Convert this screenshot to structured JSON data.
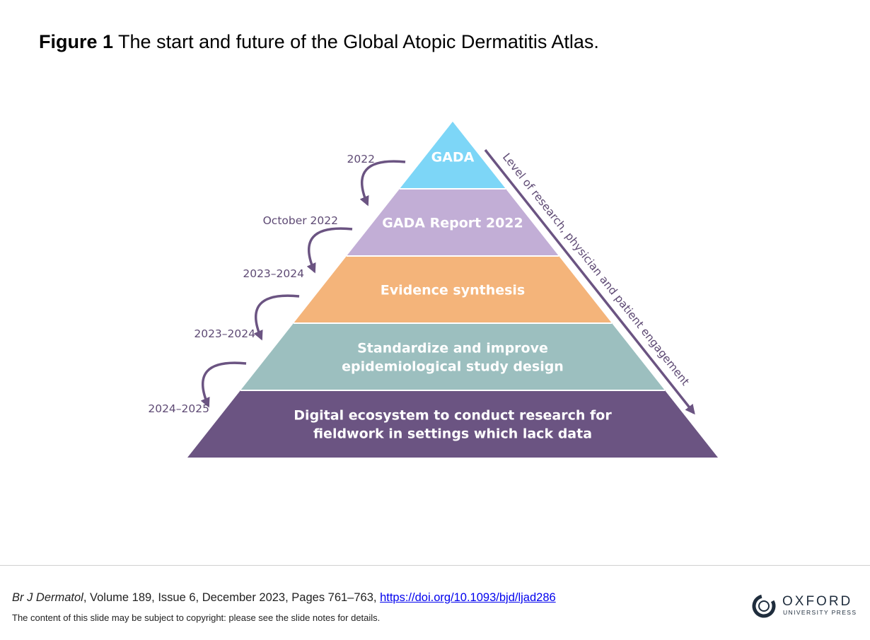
{
  "figure": {
    "label": "Figure 1",
    "caption": "The start and future of the Global Atopic Dermatitis Atlas."
  },
  "pyramid": {
    "levels": [
      {
        "lines": [
          "GADA"
        ],
        "color": "#7dd6f7"
      },
      {
        "lines": [
          "GADA Report 2022"
        ],
        "color": "#c2aed6"
      },
      {
        "lines": [
          "Evidence synthesis"
        ],
        "color": "#f4b47a"
      },
      {
        "lines": [
          "Standardize and improve",
          "epidemiological study design"
        ],
        "color": "#9cbfbf"
      },
      {
        "lines": [
          "Digital ecosystem to conduct research for",
          "fieldwork in settings which lack data"
        ],
        "color": "#6b5482"
      }
    ],
    "timeline": [
      "2022",
      "October 2022",
      "2023–2024",
      "2023–2024",
      "2024–2025"
    ],
    "side_label": "Level of research, physician and patient engagement",
    "accent_color": "#6b5482",
    "label_color": "#5e4a74"
  },
  "footer": {
    "journal": "Br J Dermatol",
    "details": ", Volume 189, Issue 6, December 2023, Pages 761–763, ",
    "doi_text": "https://doi.org/10.1093/bjd/ljad286",
    "copyright": "The content of this slide may be subject to copyright: please see the slide notes for details.",
    "logo_name": "OXFORD",
    "logo_sub": "UNIVERSITY PRESS"
  }
}
